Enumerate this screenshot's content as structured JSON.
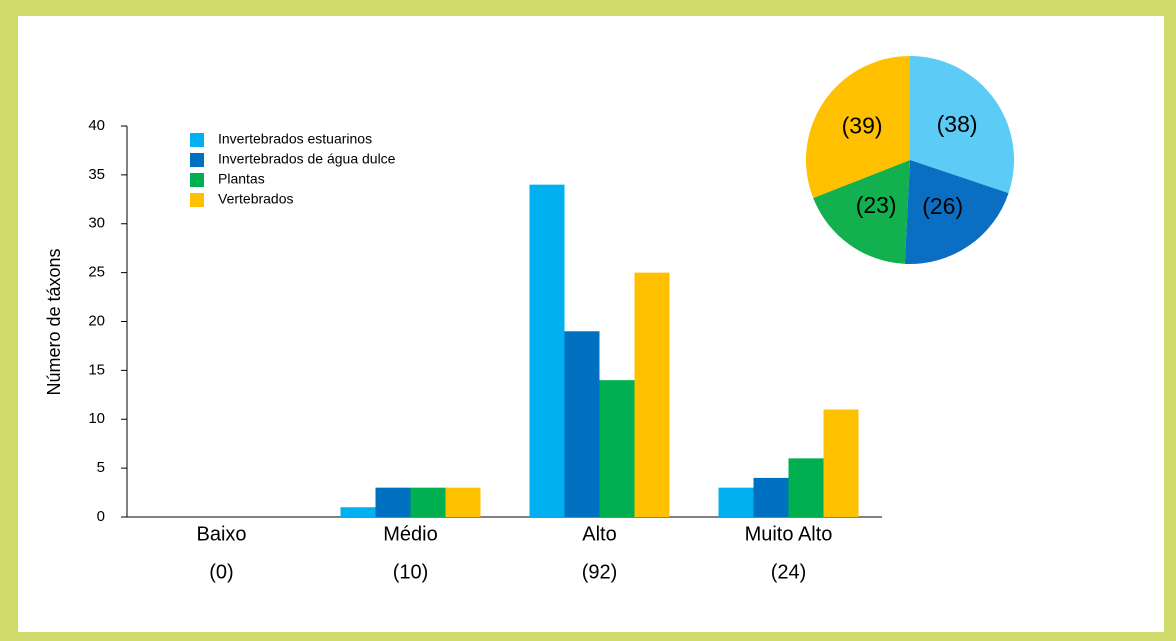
{
  "chart_data": [
    {
      "type": "bar",
      "y_label": "Número de táxons",
      "categories": [
        "Baixo",
        "Médio",
        "Alto",
        "Muito Alto"
      ],
      "totals": [
        {
          "value": 0,
          "label": "(0)"
        },
        {
          "value": 10,
          "label": "(10)"
        },
        {
          "value": 92,
          "label": "(92)"
        },
        {
          "value": 24,
          "label": "(24)"
        }
      ],
      "series": [
        {
          "name": "Invertebrados estuarinos",
          "color": "#00b0f0",
          "values": [
            0,
            1,
            34,
            3
          ]
        },
        {
          "name": "Invertebrados de água dulce",
          "color": "#0070c0",
          "values": [
            0,
            3,
            19,
            4
          ]
        },
        {
          "name": "Plantas",
          "color": "#00b050",
          "values": [
            0,
            3,
            14,
            6
          ]
        },
        {
          "name": "Vertebrados",
          "color": "#ffc000",
          "values": [
            0,
            3,
            25,
            11
          ]
        }
      ],
      "ylim": [
        0,
        40
      ],
      "yticks": [
        0,
        5,
        10,
        15,
        20,
        25,
        30,
        35,
        40
      ],
      "legend": "top-left"
    },
    {
      "type": "pie",
      "values": [
        38,
        26,
        23,
        39
      ],
      "value_labels": [
        "(38)",
        "(26)",
        "(23)",
        "(39)"
      ],
      "colors": [
        "#5ccbf5",
        "#0a6fc2",
        "#12b04f",
        "#ffc000"
      ]
    }
  ]
}
